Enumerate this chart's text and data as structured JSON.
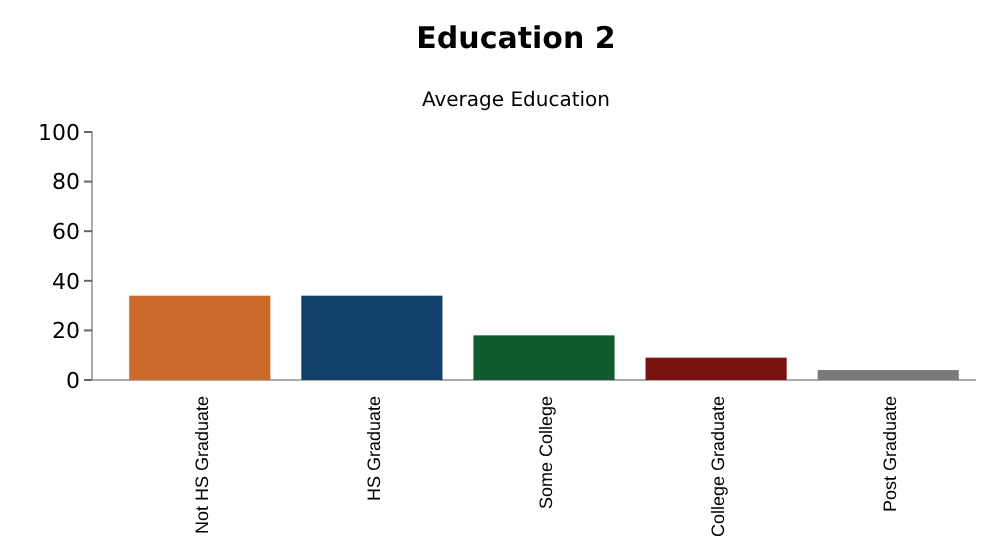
{
  "chart_data": {
    "type": "bar",
    "title": "Education 2",
    "subtitle": "Average Education",
    "categories": [
      "Not HS Graduate",
      "HS Graduate",
      "Some College",
      "College Graduate",
      "Post Graduate"
    ],
    "values": [
      34,
      34,
      18,
      9,
      4
    ],
    "colors": [
      "#cc6a2b",
      "#12406b",
      "#11592e",
      "#7a1212",
      "#7a7a7a"
    ],
    "ylim": [
      0,
      100
    ],
    "yticks": [
      0,
      20,
      40,
      60,
      80,
      100
    ],
    "grid": false
  }
}
